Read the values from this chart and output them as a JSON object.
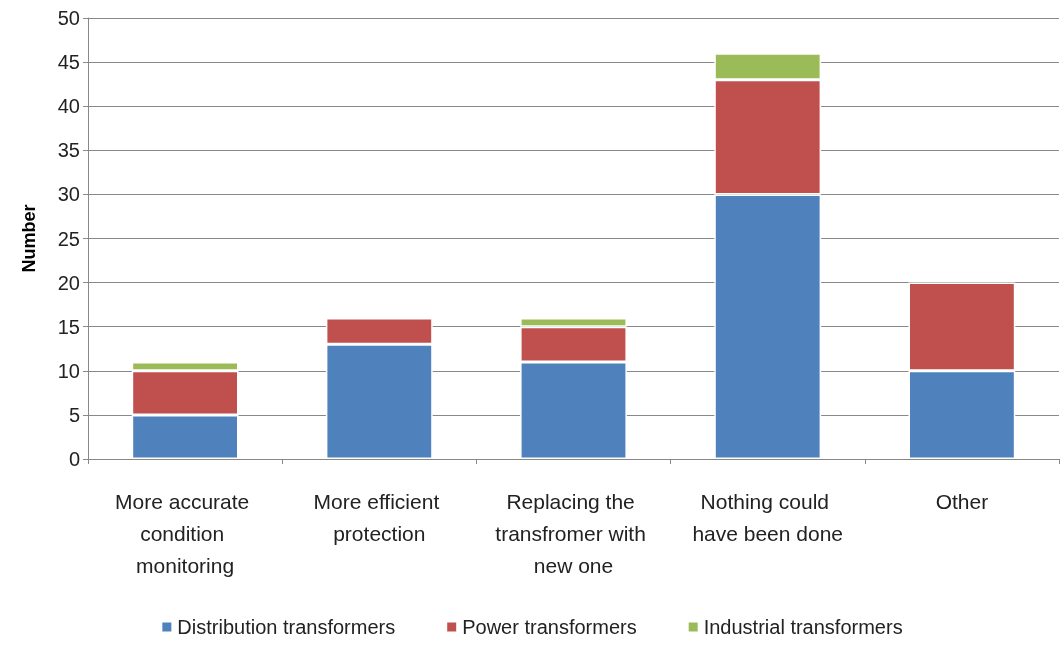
{
  "chart_data": {
    "type": "bar",
    "stacked": true,
    "ylabel": "Number",
    "categories": [
      "More accurate condition monitoring",
      "More efficient protection",
      "Replacing the transfromer with new one",
      "Nothing could have been done",
      "Other"
    ],
    "series": [
      {
        "name": "Distribution transformers",
        "color": "#4f81bd",
        "values": [
          5,
          13,
          11,
          30,
          10
        ]
      },
      {
        "name": "Power transformers",
        "color": "#c0504d",
        "values": [
          5,
          3,
          4,
          13,
          10
        ]
      },
      {
        "name": "Industrial transformers",
        "color": "#9bbb59",
        "values": [
          1,
          0,
          1,
          3,
          0
        ]
      }
    ],
    "ylim": [
      0,
      50
    ],
    "yticks": [
      0,
      5,
      10,
      15,
      20,
      25,
      30,
      35,
      40,
      45,
      50
    ],
    "grid": "y",
    "legend": "bottom"
  }
}
